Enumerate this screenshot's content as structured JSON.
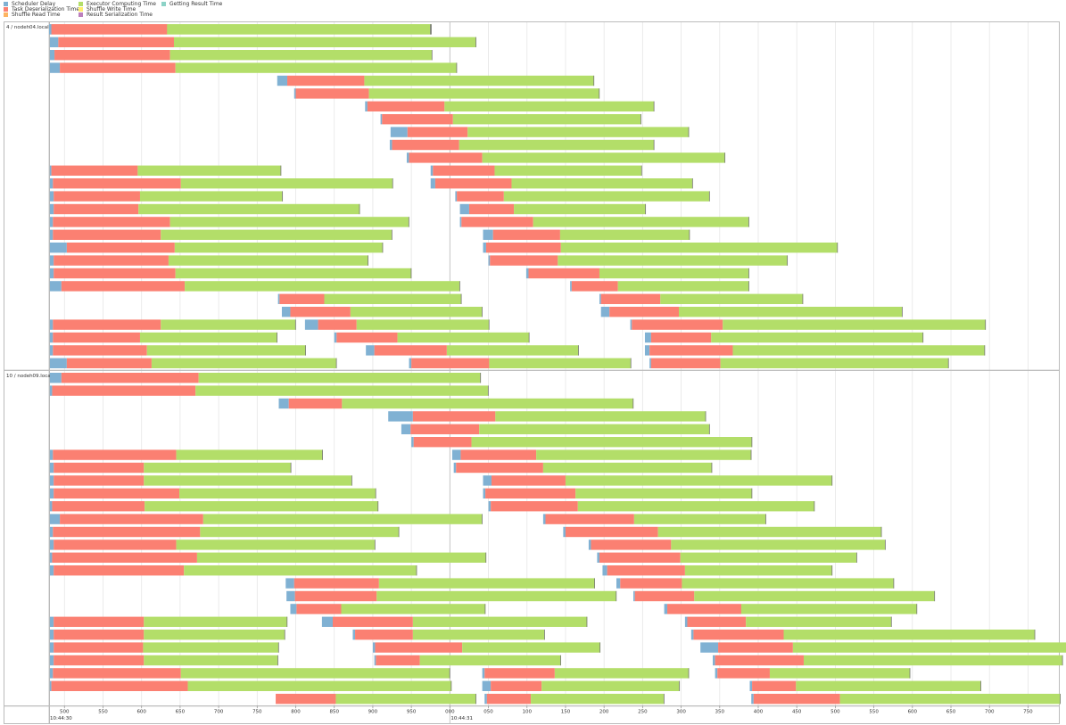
{
  "legend": [
    {
      "label": "Scheduler Delay",
      "color": "#80b1d3"
    },
    {
      "label": "Task Deserialization Time",
      "color": "#fb8072"
    },
    {
      "label": "Shuffle Read Time",
      "color": "#fdb462"
    },
    {
      "label": "Executor Computing Time",
      "color": "#b3de69"
    },
    {
      "label": "Shuffle Write Time",
      "color": "#ffed6f"
    },
    {
      "label": "Result Serialization Time",
      "color": "#bc80bd"
    },
    {
      "label": "Getting Result Time",
      "color": "#8dd3c7"
    }
  ],
  "chart_data": {
    "type": "timeline",
    "title": "",
    "xlabel": "",
    "ylabel": "",
    "x_unit": "ms",
    "xlim": [
      480,
      1790
    ],
    "x_ticks": [
      {
        "value": 500,
        "label": "500"
      },
      {
        "value": 550,
        "label": "550"
      },
      {
        "value": 600,
        "label": "600"
      },
      {
        "value": 650,
        "label": "650"
      },
      {
        "value": 700,
        "label": "700"
      },
      {
        "value": 750,
        "label": "750"
      },
      {
        "value": 800,
        "label": "800"
      },
      {
        "value": 850,
        "label": "850"
      },
      {
        "value": 900,
        "label": "900"
      },
      {
        "value": 950,
        "label": "950"
      },
      {
        "value": 1000,
        "label": "000"
      },
      {
        "value": 1050,
        "label": "050"
      },
      {
        "value": 1100,
        "label": "100"
      },
      {
        "value": 1150,
        "label": "150"
      },
      {
        "value": 1200,
        "label": "200"
      },
      {
        "value": 1250,
        "label": "250"
      },
      {
        "value": 1300,
        "label": "300"
      },
      {
        "value": 1350,
        "label": "350"
      },
      {
        "value": 1400,
        "label": "400"
      },
      {
        "value": 1450,
        "label": "450"
      },
      {
        "value": 1500,
        "label": "500"
      },
      {
        "value": 1550,
        "label": "550"
      },
      {
        "value": 1600,
        "label": "600"
      },
      {
        "value": 1650,
        "label": "650"
      },
      {
        "value": 1700,
        "label": "700"
      },
      {
        "value": 1750,
        "label": "750"
      }
    ],
    "time_labels": [
      {
        "value": 480,
        "label": "10:44:30"
      },
      {
        "value": 1000,
        "label": "10:44:31"
      }
    ],
    "segment_order": [
      "scheduler_delay",
      "task_deserialization",
      "executor_computing"
    ],
    "executors": [
      {
        "name": "4 / nodeh04.local",
        "tasks": [
          [
            [
              481,
              3,
              150,
              342
            ],
            [
              480,
              3,
              150,
              342
            ]
          ],
          [
            [
              481,
              11,
              150,
              392
            ]
          ],
          [
            [
              481,
              6,
              150,
              340
            ]
          ],
          [
            [
              481,
              13,
              150,
              365
            ]
          ],
          [
            [
              776,
              13,
              100,
              298
            ]
          ],
          [
            [
              798,
              2,
              95,
              299
            ]
          ],
          [
            [
              890,
              3,
              100,
              272
            ]
          ],
          [
            [
              910,
              2,
              92,
              244
            ]
          ],
          [
            [
              923,
              22,
              78,
              287
            ]
          ],
          [
            [
              922,
              3,
              87,
              253
            ]
          ],
          [
            [
              944,
              3,
              95,
              315
            ]
          ],
          [
            [
              481,
              2,
              112,
              186
            ],
            [
              975,
              3,
              80,
              191
            ]
          ],
          [
            [
              481,
              4,
              166,
              275
            ],
            [
              975,
              6,
              99,
              235
            ]
          ],
          [
            [
              481,
              5,
              112,
              185
            ],
            [
              1007,
              2,
              61,
              267
            ]
          ],
          [
            [
              481,
              5,
              110,
              287
            ],
            [
              1013,
              12,
              58,
              171
            ]
          ],
          [
            [
              481,
              4,
              152,
              310
            ],
            [
              1013,
              2,
              93,
              280
            ]
          ],
          [
            [
              481,
              4,
              140,
              300
            ],
            [
              1043,
              13,
              87,
              168
            ]
          ],
          [
            [
              481,
              22,
              140,
              270
            ],
            [
              1043,
              4,
              97,
              359
            ]
          ],
          [
            [
              481,
              5,
              149,
              259
            ],
            [
              1050,
              2,
              88,
              298
            ]
          ],
          [
            [
              481,
              5,
              158,
              306
            ],
            [
              1099,
              3,
              92,
              194
            ]
          ],
          [
            [
              481,
              15,
              160,
              357
            ],
            [
              1156,
              2,
              60,
              170
            ]
          ],
          [
            [
              777,
              2,
              58,
              178
            ],
            [
              1194,
              2,
              77,
              185
            ]
          ],
          [
            [
              782,
              11,
              78,
              171
            ],
            [
              1196,
              11,
              90,
              290
            ]
          ],
          [
            [
              481,
              4,
              140,
              175
            ],
            [
              812,
              17,
              50,
              172
            ],
            [
              1234,
              2,
              118,
              341
            ]
          ],
          [
            [
              481,
              4,
              113,
              178
            ],
            [
              850,
              3,
              79,
              171
            ],
            [
              1253,
              8,
              78,
              275
            ]
          ],
          [
            [
              481,
              4,
              122,
              206
            ],
            [
              891,
              11,
              94,
              171
            ],
            [
              1253,
              6,
              108,
              327
            ]
          ],
          [
            [
              481,
              22,
              110,
              240
            ],
            [
              947,
              3,
              101,
              184
            ],
            [
              1259,
              2,
              90,
              296
            ]
          ]
        ]
      },
      {
        "name": "10 / nodeh09.local",
        "tasks": [
          [
            [
              481,
              15,
              178,
              366
            ]
          ],
          [
            [
              481,
              3,
              186,
              380
            ]
          ],
          [
            [
              778,
              13,
              69,
              378
            ]
          ],
          [
            [
              920,
              32,
              107,
              273
            ]
          ],
          [
            [
              937,
              12,
              89,
              299
            ]
          ],
          [
            [
              950,
              3,
              75,
              364
            ]
          ],
          [
            [
              481,
              4,
              160,
              190
            ],
            [
              1003,
              11,
              98,
              279
            ]
          ],
          [
            [
              481,
              5,
              117,
              191
            ],
            [
              1005,
              3,
              113,
              219
            ]
          ],
          [
            [
              481,
              5,
              117,
              270
            ],
            [
              1043,
              11,
              96,
              346
            ]
          ],
          [
            [
              481,
              5,
              163,
              255
            ],
            [
              1043,
              3,
              117,
              229
            ]
          ],
          [
            [
              481,
              3,
              120,
              303
            ],
            [
              1050,
              3,
              113,
              307
            ]
          ],
          [
            [
              481,
              13,
              186,
              362
            ],
            [
              1121,
              3,
              115,
              171
            ]
          ],
          [
            [
              481,
              4,
              191,
              258
            ],
            [
              1147,
              3,
              120,
              290
            ]
          ],
          [
            [
              481,
              5,
              159,
              258
            ],
            [
              1180,
              3,
              104,
              278
            ]
          ],
          [
            [
              481,
              3,
              188,
              375
            ],
            [
              1191,
              3,
              105,
              229
            ]
          ],
          [
            [
              481,
              5,
              169,
              302
            ],
            [
              1198,
              6,
              101,
              191
            ]
          ],
          [
            [
              787,
              11,
              110,
              280
            ],
            [
              1216,
              5,
              80,
              275
            ]
          ],
          [
            [
              788,
              11,
              106,
              311
            ],
            [
              1238,
              2,
              77,
              312
            ]
          ],
          [
            [
              793,
              8,
              58,
              187
            ],
            [
              1278,
              4,
              96,
              228
            ]
          ],
          [
            [
              481,
              5,
              117,
              186
            ],
            [
              834,
              14,
              104,
              226
            ],
            [
              1305,
              3,
              76,
              189
            ]
          ],
          [
            [
              481,
              5,
              117,
              183
            ],
            [
              874,
              3,
              75,
              171
            ],
            [
              1313,
              3,
              117,
              326
            ]
          ],
          [
            [
              481,
              5,
              116,
              176
            ],
            [
              900,
              3,
              113,
              179
            ],
            [
              1325,
              23,
              97,
              362
            ]
          ],
          [
            [
              481,
              5,
              117,
              174
            ],
            [
              902,
              2,
              57,
              183
            ],
            [
              1341,
              3,
              115,
              336
            ]
          ],
          [
            [
              481,
              4,
              166,
              349
            ],
            [
              1042,
              3,
              91,
              174
            ],
            [
              1344,
              3,
              68,
              182
            ]
          ],
          [
            [
              481,
              2,
              177,
              342
            ],
            [
              1042,
              11,
              66,
              179
            ],
            [
              1389,
              3,
              57,
              240
            ]
          ],
          [
            [
              774,
              0,
              78,
              182
            ],
            [
              1045,
              3,
              57,
              173
            ],
            [
              1391,
              3,
              112,
              286
            ]
          ]
        ]
      }
    ]
  }
}
